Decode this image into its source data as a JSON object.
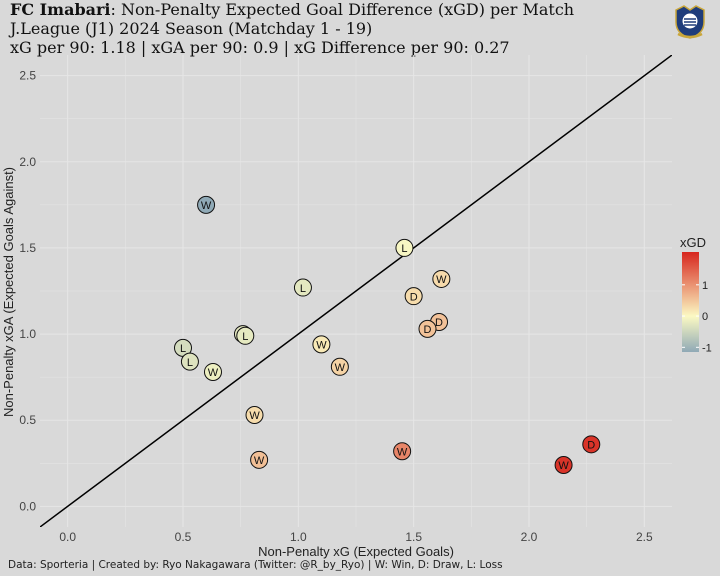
{
  "header": {
    "team": "FC Imabari",
    "title_rest": ": Non-Penalty Expected Goal Difference (xGD) per Match",
    "subtitle": "J.League (J1) 2024 Season (Matchday 1 - 19)",
    "stats_line": "xG per 90: 1.18 | xGA per 90: 0.9 | xG Difference per 90: 0.27"
  },
  "caption": "Data: Sporteria | Created by: Ryo Nakagawara (Twitter: @R_by_Ryo) | W: Win, D: Draw, L: Loss",
  "colors": {
    "background": "#d9d9d9",
    "grid": "#e6e6e6",
    "diagonal": "#000000",
    "scale_low": "#8fa9b6",
    "scale_mid": "#fbf9c3",
    "scale_high": "#d7261e"
  },
  "chart_data": {
    "type": "scatter",
    "xlabel": "Non-Penalty xG (Expected Goals)",
    "ylabel": "Non-Penalty xGA (Expected Goals Against)",
    "xlim": [
      -0.12,
      2.62
    ],
    "ylim": [
      -0.12,
      2.62
    ],
    "x_ticks": [
      0.0,
      0.5,
      1.0,
      1.5,
      2.0,
      2.5
    ],
    "y_ticks": [
      0.0,
      0.5,
      1.0,
      1.5,
      2.0,
      2.5
    ],
    "x_tick_labels": [
      "0.0",
      "0.5",
      "1.0",
      "1.5",
      "2.0",
      "2.5"
    ],
    "y_tick_labels": [
      "0.0",
      "0.5",
      "1.0",
      "1.5",
      "2.0",
      "2.5"
    ],
    "reference_line": "y = x",
    "grid": true,
    "legend": {
      "title": "xGD",
      "position": "right",
      "breaks": [
        1,
        0,
        -1
      ],
      "break_labels": [
        "1",
        "0",
        "-1"
      ],
      "range": [
        -1.15,
        2.05
      ]
    },
    "points": [
      {
        "x": 0.6,
        "y": 1.75,
        "result": "W"
      },
      {
        "x": 1.46,
        "y": 1.5,
        "result": "L"
      },
      {
        "x": 1.02,
        "y": 1.27,
        "result": "L"
      },
      {
        "x": 1.5,
        "y": 1.22,
        "result": "D"
      },
      {
        "x": 1.62,
        "y": 1.32,
        "result": "W"
      },
      {
        "x": 1.61,
        "y": 1.07,
        "result": "D"
      },
      {
        "x": 1.56,
        "y": 1.03,
        "result": "D"
      },
      {
        "x": 0.76,
        "y": 1.0,
        "result": "D"
      },
      {
        "x": 0.77,
        "y": 0.99,
        "result": "L"
      },
      {
        "x": 0.5,
        "y": 0.92,
        "result": "L"
      },
      {
        "x": 0.53,
        "y": 0.84,
        "result": "L"
      },
      {
        "x": 0.63,
        "y": 0.78,
        "result": "W"
      },
      {
        "x": 1.1,
        "y": 0.94,
        "result": "W"
      },
      {
        "x": 1.18,
        "y": 0.81,
        "result": "W"
      },
      {
        "x": 0.81,
        "y": 0.53,
        "result": "W"
      },
      {
        "x": 0.83,
        "y": 0.27,
        "result": "W"
      },
      {
        "x": 1.45,
        "y": 0.32,
        "result": "W"
      },
      {
        "x": 2.15,
        "y": 0.24,
        "result": "W"
      },
      {
        "x": 2.27,
        "y": 0.36,
        "result": "D"
      }
    ]
  }
}
